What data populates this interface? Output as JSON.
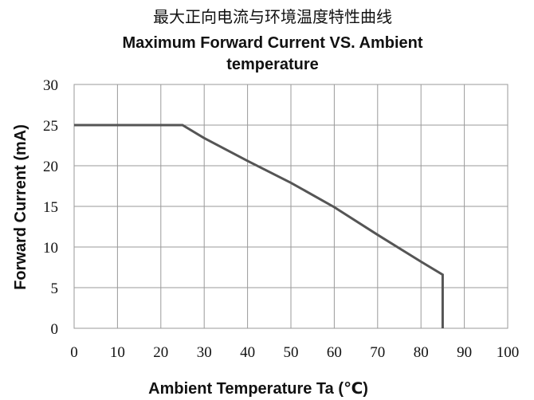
{
  "chart_data": {
    "type": "line",
    "title_zh": "最大正向电流与环境温度特性曲线",
    "title_en_line1": "Maximum Forward Current VS. Ambient",
    "title_en_line2": "temperature",
    "xlabel": "Ambient  Temperature  Ta (℃)",
    "ylabel": "Forward Current (mA)",
    "xlim": [
      0,
      100
    ],
    "ylim": [
      0,
      30
    ],
    "x_ticks": [
      "0",
      "10",
      "20",
      "30",
      "40",
      "50",
      "60",
      "70",
      "80",
      "90",
      "100"
    ],
    "y_ticks": [
      "0",
      "5",
      "10",
      "15",
      "20",
      "25",
      "30"
    ],
    "grid": true,
    "series": [
      {
        "x": [
          0,
          25,
          30,
          40,
          50,
          60,
          70,
          80,
          85,
          85
        ],
        "y": [
          25,
          25,
          23.4,
          20.6,
          17.9,
          14.9,
          11.5,
          8.2,
          6.6,
          0
        ]
      }
    ],
    "colors": {
      "line": "#555555",
      "grid": "#9a9a9a"
    }
  }
}
